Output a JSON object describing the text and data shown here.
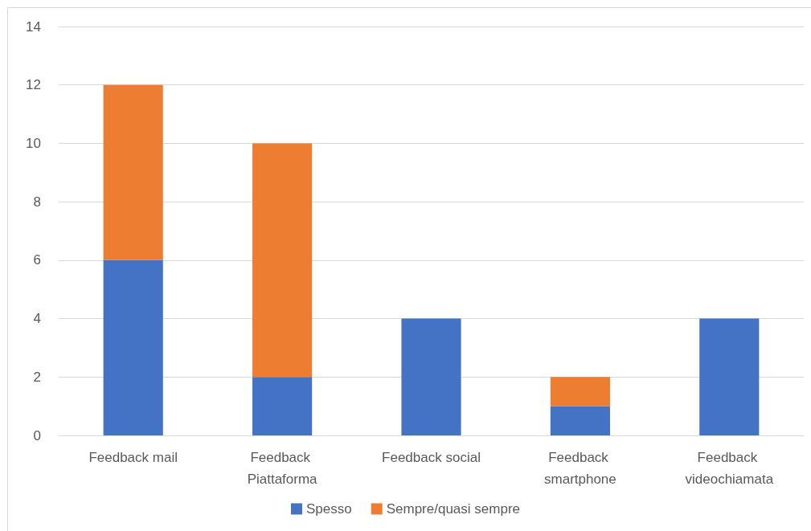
{
  "chart_data": {
    "type": "bar",
    "stacked": true,
    "categories": [
      "Feedback mail",
      "Feedback Piattaforma",
      "Feedback social",
      "Feedback smartphone",
      "Feedback videochiamata"
    ],
    "series": [
      {
        "name": "Spesso",
        "color": "#4472c4",
        "values": [
          6,
          2,
          4,
          1,
          4
        ]
      },
      {
        "name": "Sempre/quasi sempre",
        "color": "#ed7d31",
        "values": [
          6,
          8,
          null,
          1,
          null
        ]
      }
    ],
    "ylim": [
      0,
      14
    ],
    "yticks": [
      0,
      2,
      4,
      6,
      8,
      10,
      12,
      14
    ],
    "grid": "y",
    "legend": "bottom"
  }
}
